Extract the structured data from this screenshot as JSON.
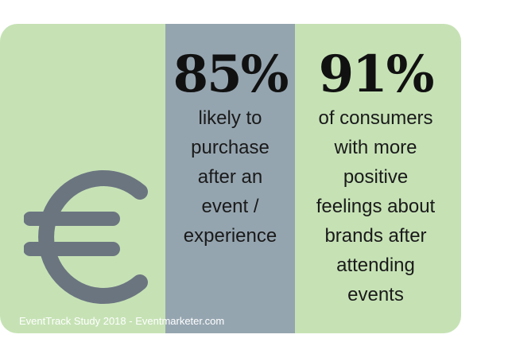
{
  "stats": [
    {
      "value": "85%",
      "description": "likely to purchase after an event / experience",
      "lines": [
        "likely to",
        "purchase",
        "after an",
        "event /",
        "experience"
      ]
    },
    {
      "value": "91%",
      "description": "of consumers with more positive feelings about brands after attending events",
      "lines": [
        "of consumers",
        "with more",
        "positive",
        "feelings about",
        "brands after",
        "attending",
        "events"
      ]
    }
  ],
  "source": "EventTrack Study 2018 - Eventmarketer.com",
  "icon": "euro-icon",
  "colors": {
    "card_background": "#c6e2b5",
    "middle_panel": "#95a5b0",
    "euro_icon": "#6b7580",
    "text": "#111111",
    "source_text": "#ffffff"
  }
}
